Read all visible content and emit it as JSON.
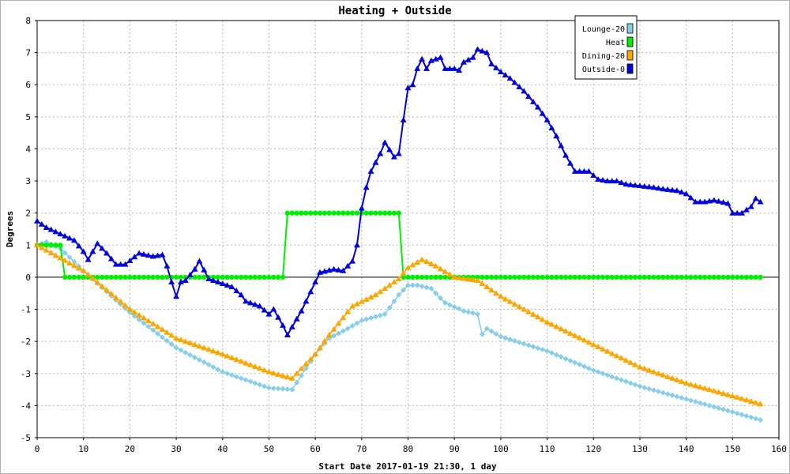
{
  "chart_data": {
    "type": "line",
    "title": "Heating + Outside",
    "xlabel": "Start Date 2017-01-19 21:30, 1 day",
    "ylabel": "Degrees",
    "xlim": [
      0,
      160
    ],
    "ylim": [
      -5,
      8
    ],
    "xticks": [
      0,
      10,
      20,
      30,
      40,
      50,
      60,
      70,
      80,
      90,
      100,
      110,
      120,
      130,
      140,
      150,
      160
    ],
    "yticks": [
      -5,
      -4,
      -3,
      -2,
      -1,
      0,
      1,
      2,
      3,
      4,
      5,
      6,
      7,
      8
    ],
    "grid": true,
    "legend_position": "top-right",
    "series": [
      {
        "name": "Lounge-20",
        "color": "#87ceeb",
        "marker": "diamond",
        "points": [
          [
            0,
            1.0
          ],
          [
            2,
            1.1
          ],
          [
            5,
            0.9
          ],
          [
            10,
            0.2
          ],
          [
            20,
            -1.1
          ],
          [
            30,
            -2.2
          ],
          [
            40,
            -2.95
          ],
          [
            50,
            -3.45
          ],
          [
            55,
            -3.5
          ],
          [
            60,
            -2.4
          ],
          [
            63,
            -1.9
          ],
          [
            67,
            -1.6
          ],
          [
            70,
            -1.35
          ],
          [
            75,
            -1.15
          ],
          [
            78,
            -0.55
          ],
          [
            80,
            -0.25
          ],
          [
            82,
            -0.25
          ],
          [
            85,
            -0.35
          ],
          [
            88,
            -0.8
          ],
          [
            92,
            -1.05
          ],
          [
            95,
            -1.15
          ],
          [
            96,
            -1.78
          ],
          [
            97,
            -1.6
          ],
          [
            100,
            -1.85
          ],
          [
            110,
            -2.3
          ],
          [
            120,
            -2.9
          ],
          [
            130,
            -3.4
          ],
          [
            140,
            -3.8
          ],
          [
            150,
            -4.2
          ],
          [
            156,
            -4.45
          ]
        ]
      },
      {
        "name": "Heat",
        "color": "#00ee00",
        "marker": "circle",
        "points": [
          [
            0,
            1
          ],
          [
            5,
            1
          ],
          [
            6,
            0
          ],
          [
            53,
            0
          ],
          [
            54,
            2
          ],
          [
            78,
            2
          ],
          [
            79,
            0
          ],
          [
            156,
            0
          ]
        ]
      },
      {
        "name": "Dining-20",
        "color": "#ffa500",
        "marker": "triangle",
        "points": [
          [
            0,
            1.0
          ],
          [
            5,
            0.6
          ],
          [
            10,
            0.2
          ],
          [
            20,
            -1.0
          ],
          [
            30,
            -1.9
          ],
          [
            40,
            -2.4
          ],
          [
            50,
            -2.95
          ],
          [
            55,
            -3.15
          ],
          [
            60,
            -2.4
          ],
          [
            63,
            -1.8
          ],
          [
            68,
            -0.9
          ],
          [
            73,
            -0.55
          ],
          [
            78,
            -0.05
          ],
          [
            80,
            0.3
          ],
          [
            83,
            0.55
          ],
          [
            86,
            0.35
          ],
          [
            90,
            0.0
          ],
          [
            95,
            -0.1
          ],
          [
            100,
            -0.6
          ],
          [
            110,
            -1.4
          ],
          [
            120,
            -2.1
          ],
          [
            130,
            -2.8
          ],
          [
            140,
            -3.3
          ],
          [
            150,
            -3.7
          ],
          [
            156,
            -3.95
          ]
        ]
      },
      {
        "name": "Outside-0",
        "color": "#0000dd",
        "marker": "triangle",
        "points": [
          [
            0,
            1.75
          ],
          [
            2,
            1.55
          ],
          [
            5,
            1.35
          ],
          [
            8,
            1.15
          ],
          [
            10,
            0.8
          ],
          [
            11,
            0.55
          ],
          [
            13,
            1.05
          ],
          [
            15,
            0.75
          ],
          [
            17,
            0.4
          ],
          [
            19,
            0.4
          ],
          [
            22,
            0.75
          ],
          [
            25,
            0.65
          ],
          [
            27,
            0.7
          ],
          [
            28,
            0.35
          ],
          [
            29,
            -0.15
          ],
          [
            30,
            -0.6
          ],
          [
            31,
            -0.15
          ],
          [
            32,
            -0.1
          ],
          [
            34,
            0.25
          ],
          [
            35,
            0.5
          ],
          [
            37,
            -0.05
          ],
          [
            40,
            -0.2
          ],
          [
            42,
            -0.3
          ],
          [
            44,
            -0.55
          ],
          [
            45,
            -0.75
          ],
          [
            48,
            -0.9
          ],
          [
            50,
            -1.15
          ],
          [
            51,
            -1.0
          ],
          [
            53,
            -1.5
          ],
          [
            54,
            -1.8
          ],
          [
            56,
            -1.3
          ],
          [
            57,
            -1.05
          ],
          [
            59,
            -0.45
          ],
          [
            61,
            0.15
          ],
          [
            64,
            0.25
          ],
          [
            66,
            0.2
          ],
          [
            68,
            0.5
          ],
          [
            69,
            1.0
          ],
          [
            70,
            2.15
          ],
          [
            71,
            2.8
          ],
          [
            72,
            3.3
          ],
          [
            74,
            3.85
          ],
          [
            75,
            4.2
          ],
          [
            77,
            3.75
          ],
          [
            78,
            3.85
          ],
          [
            79,
            4.9
          ],
          [
            80,
            5.9
          ],
          [
            81,
            6.0
          ],
          [
            82,
            6.5
          ],
          [
            83,
            6.8
          ],
          [
            84,
            6.5
          ],
          [
            85,
            6.75
          ],
          [
            87,
            6.85
          ],
          [
            88,
            6.5
          ],
          [
            90,
            6.5
          ],
          [
            91,
            6.45
          ],
          [
            92,
            6.7
          ],
          [
            94,
            6.85
          ],
          [
            95,
            7.1
          ],
          [
            97,
            7.0
          ],
          [
            98,
            6.65
          ],
          [
            100,
            6.4
          ],
          [
            102,
            6.2
          ],
          [
            105,
            5.8
          ],
          [
            108,
            5.3
          ],
          [
            110,
            4.9
          ],
          [
            112,
            4.4
          ],
          [
            114,
            3.8
          ],
          [
            116,
            3.3
          ],
          [
            119,
            3.3
          ],
          [
            121,
            3.05
          ],
          [
            123,
            3.0
          ],
          [
            125,
            3.0
          ],
          [
            127,
            2.9
          ],
          [
            130,
            2.85
          ],
          [
            133,
            2.8
          ],
          [
            135,
            2.75
          ],
          [
            138,
            2.7
          ],
          [
            140,
            2.6
          ],
          [
            142,
            2.35
          ],
          [
            144,
            2.35
          ],
          [
            146,
            2.4
          ],
          [
            149,
            2.3
          ],
          [
            150,
            2.0
          ],
          [
            152,
            2.0
          ],
          [
            154,
            2.2
          ],
          [
            155,
            2.45
          ],
          [
            156,
            2.35
          ]
        ]
      }
    ]
  }
}
